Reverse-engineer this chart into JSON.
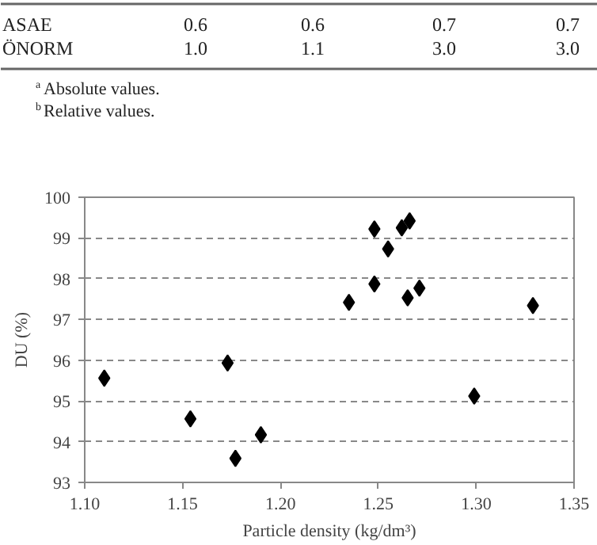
{
  "chart_data": {
    "type": "scatter",
    "xlabel": "Particle density (kg/dm³)",
    "ylabel": "DU (%)",
    "x": [
      1.11,
      1.154,
      1.173,
      1.177,
      1.19,
      1.235,
      1.248,
      1.248,
      1.255,
      1.262,
      1.266,
      1.265,
      1.271,
      1.299,
      1.329
    ],
    "series": [
      {
        "color": "#000000",
        "values": [
          95.56,
          94.56,
          95.93,
          93.59,
          94.17,
          97.42,
          99.22,
          97.87,
          98.73,
          99.25,
          99.42,
          97.53,
          97.77,
          95.12,
          97.34
        ]
      }
    ],
    "xlim": [
      1.1,
      1.35
    ],
    "ylim": [
      93,
      100
    ],
    "xticks": [
      {
        "value": 1.1,
        "label": "1.10"
      },
      {
        "value": 1.15,
        "label": "1.15"
      },
      {
        "value": 1.2,
        "label": "1.20"
      },
      {
        "value": 1.25,
        "label": "1.25"
      },
      {
        "value": 1.3,
        "label": "1.30"
      },
      {
        "value": 1.35,
        "label": "1.35"
      }
    ],
    "yticks": [
      93,
      94,
      95,
      96,
      97,
      98,
      99,
      100
    ],
    "grid": "y",
    "marker": "diamond",
    "annotations": [
      "ASAE 0.6 0.6 0.7 0.7",
      "ÖNORM 1.0 1.1 3.0 3.0",
      "$^{a}$Absolute values.",
      "$^{b}$Relative values."
    ]
  }
}
